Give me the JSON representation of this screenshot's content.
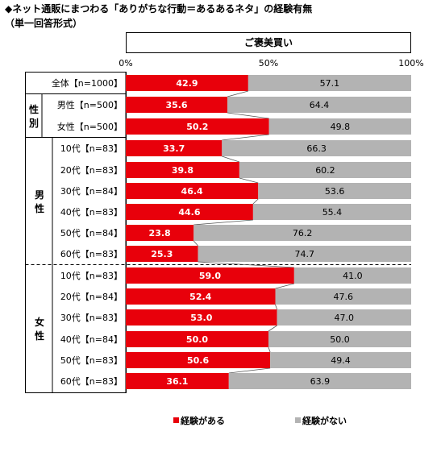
{
  "title": "◆ネット通販にまつわる「ありがちな行動＝あるあるネタ」の経験有無",
  "subtitle": "（単一回答形式）",
  "heading": "ご褒美買い",
  "colors": {
    "yes": "#e8000b",
    "no": "#b3b3b3",
    "divider": "#000000"
  },
  "chart_data": {
    "type": "bar",
    "orientation": "horizontal",
    "stacked": true,
    "percent_scale": true,
    "xlim": [
      0,
      100
    ],
    "tick_labels": [
      "0%",
      "50%",
      "100%"
    ],
    "tick_values": [
      0,
      50,
      100
    ],
    "legend_position": "bottom",
    "series": [
      {
        "name": "経験がある",
        "color": "#e8000b",
        "values": [
          42.9,
          35.6,
          50.2,
          33.7,
          39.8,
          46.4,
          44.6,
          23.8,
          25.3,
          59.0,
          52.4,
          53.0,
          50.0,
          50.6,
          36.1
        ],
        "value_labels": [
          "42.9",
          "35.6",
          "50.2",
          "33.7",
          "39.8",
          "46.4",
          "44.6",
          "23.8",
          "25.3",
          "59.0",
          "52.4",
          "53.0",
          "50.0",
          "50.6",
          "36.1"
        ]
      },
      {
        "name": "経験がない",
        "color": "#b3b3b3",
        "values": [
          57.1,
          64.4,
          49.8,
          66.3,
          60.2,
          53.6,
          55.4,
          76.2,
          74.7,
          41.0,
          47.6,
          47.0,
          50.0,
          49.4,
          63.9
        ],
        "value_labels": [
          "57.1",
          "64.4",
          "49.8",
          "66.3",
          "60.2",
          "53.6",
          "55.4",
          "76.2",
          "74.7",
          "41.0",
          "47.6",
          "47.0",
          "50.0",
          "49.4",
          "63.9"
        ]
      }
    ],
    "categories": [
      "全体【n=1000】",
      "男性【n=500】",
      "女性【n=500】",
      "10代【n=83】",
      "20代【n=83】",
      "30代【n=84】",
      "40代【n=83】",
      "50代【n=84】",
      "60代【n=83】",
      "10代【n=83】",
      "20代【n=84】",
      "30代【n=83】",
      "40代【n=84】",
      "50代【n=83】",
      "60代【n=83】"
    ],
    "groups": [
      {
        "label": "性別",
        "rows": [
          1,
          2
        ]
      },
      {
        "label": "男性",
        "rows": [
          3,
          4,
          5,
          6,
          7,
          8
        ]
      },
      {
        "label": "女性",
        "rows": [
          9,
          10,
          11,
          12,
          13,
          14
        ]
      }
    ]
  }
}
